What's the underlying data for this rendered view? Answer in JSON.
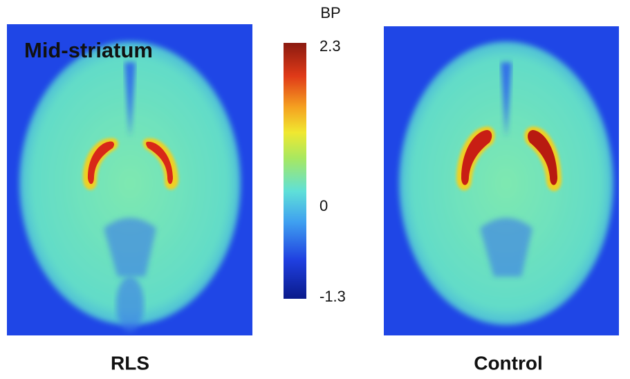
{
  "panel_title": "Mid-striatum",
  "colorbar": {
    "label": "BP",
    "ticks": [
      2.3,
      0,
      -1.3
    ]
  },
  "images": [
    {
      "label": "RLS"
    },
    {
      "label": "Control"
    }
  ]
}
